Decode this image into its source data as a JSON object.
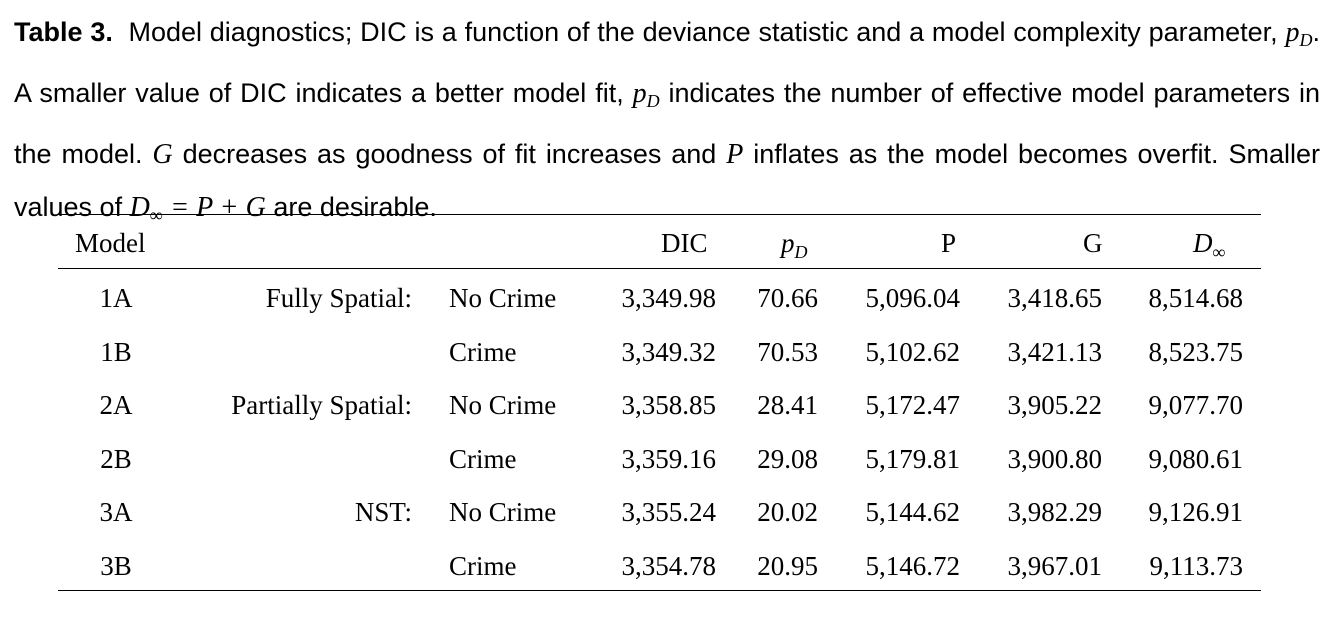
{
  "caption": {
    "label": "Table 3.",
    "t1": "Model diagnostics; DIC is a function of the deviance statistic and a model complexity parameter,",
    "t2": ". A smaller value of DIC indicates a better model fit,",
    "t3": "indicates the number of effective model parameters in the model.",
    "t4": "decreases as goodness of fit increases and",
    "t5": "inflates as the model becomes overfit. Smaller values of",
    "t6": "are desirable.",
    "pd_base": "p",
    "pd_sub": "D",
    "g": "G",
    "p": "P",
    "dinf_base": "D",
    "dinf_sub": "∞",
    "eq": "= P + G"
  },
  "table": {
    "headers": {
      "model": "Model",
      "dic": "DIC",
      "pd_base": "p",
      "pd_sub": "D",
      "p": "P",
      "g": "G",
      "dinf_base": "D",
      "dinf_sub": "∞"
    },
    "rows": [
      {
        "model": "1A",
        "group": "Fully Spatial:",
        "crime": "No Crime",
        "dic": "3,349.98",
        "pd": "70.66",
        "p": "5,096.04",
        "g": "3,418.65",
        "dinf": "8,514.68"
      },
      {
        "model": "1B",
        "group": "",
        "crime": "Crime",
        "dic": "3,349.32",
        "pd": "70.53",
        "p": "5,102.62",
        "g": "3,421.13",
        "dinf": "8,523.75"
      },
      {
        "model": "2A",
        "group": "Partially Spatial:",
        "crime": "No Crime",
        "dic": "3,358.85",
        "pd": "28.41",
        "p": "5,172.47",
        "g": "3,905.22",
        "dinf": "9,077.70"
      },
      {
        "model": "2B",
        "group": "",
        "crime": "Crime",
        "dic": "3,359.16",
        "pd": "29.08",
        "p": "5,179.81",
        "g": "3,900.80",
        "dinf": "9,080.61"
      },
      {
        "model": "3A",
        "group": "NST:",
        "crime": "No Crime",
        "dic": "3,355.24",
        "pd": "20.02",
        "p": "5,144.62",
        "g": "3,982.29",
        "dinf": "9,126.91"
      },
      {
        "model": "3B",
        "group": "",
        "crime": "Crime",
        "dic": "3,354.78",
        "pd": "20.95",
        "p": "5,146.72",
        "g": "3,967.01",
        "dinf": "9,113.73"
      }
    ]
  }
}
